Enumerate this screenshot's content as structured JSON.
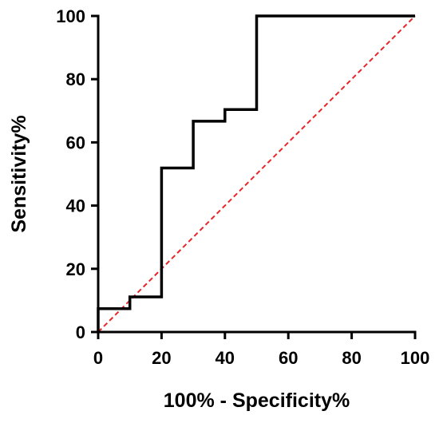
{
  "chart_data": {
    "type": "line",
    "title": "",
    "xlabel": "100% - Specificity%",
    "ylabel": "Sensitivity%",
    "xlim": [
      0,
      100
    ],
    "ylim": [
      0,
      100
    ],
    "x_ticks": [
      "0",
      "20",
      "40",
      "60",
      "80",
      "100"
    ],
    "y_ticks": [
      "0",
      "20",
      "40",
      "60",
      "80",
      "100"
    ],
    "grid": false,
    "legend": "none",
    "series": [
      {
        "style": "step",
        "color": "#000000",
        "x": [
          0,
          0,
          10,
          10,
          20,
          20,
          30,
          30,
          40,
          40,
          50,
          50,
          100
        ],
        "y": [
          0,
          7.4,
          7.4,
          11.1,
          11.1,
          51.9,
          51.9,
          66.7,
          66.7,
          70.4,
          70.4,
          100,
          100
        ]
      },
      {
        "style": "dashed",
        "color": "#e8262a",
        "x": [
          0,
          100
        ],
        "y": [
          0,
          100
        ]
      }
    ]
  }
}
